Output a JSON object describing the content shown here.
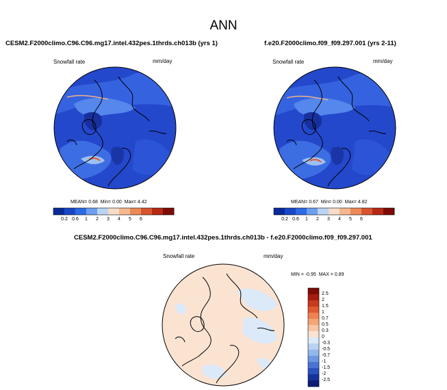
{
  "page": {
    "title": "ANN"
  },
  "panels": [
    {
      "case": "CESM2.F2000climo.C96.C96.mg17.intel.432pes.1thrds.ch013b (yrs 1)",
      "variable": "Snowfall rate",
      "units": "mm/day",
      "stats": {
        "mean_label": "MEAN=",
        "mean": "0.68",
        "min_label": "Min=",
        "min": "0.00",
        "max_label": "Max=",
        "max": "4.42"
      }
    },
    {
      "case": "f.e20.F2000climo.f09_f09.297.001 (yrs 2-11)",
      "variable": "Snowfall rate",
      "units": "mm/day",
      "stats": {
        "mean_label": "MEAN=",
        "mean": "0.67",
        "min_label": "Min=",
        "min": "0.00",
        "max_label": "Max=",
        "max": "4.82"
      }
    }
  ],
  "colorbar_horizontal": {
    "labels": [
      "0.2",
      "0.6",
      "1",
      "2",
      "3",
      "4",
      "5",
      "6"
    ],
    "colors": [
      "#0a2a9a",
      "#1a47c8",
      "#2d6ae6",
      "#6d9ef0",
      "#b9d4f5",
      "#f7dcc8",
      "#f5b88e",
      "#ec8a57",
      "#d8542e",
      "#b52a14",
      "#7e0b05"
    ]
  },
  "difference": {
    "title": "CESM2.F2000climo.C96.C96.mg17.intel.432pes.1thrds.ch013b - f.e20.F2000climo.f09_f09.297.001",
    "variable": "Snowfall rate",
    "units": "mm/day",
    "stats": {
      "min_label": "MIN =",
      "min": "-0.95",
      "max_label": "MAX =",
      "max": "0.89"
    }
  },
  "colorbar_vertical": {
    "labels": [
      "2.5",
      "2",
      "1.5",
      "1",
      "0.7",
      "0.5",
      "0.3",
      "0",
      "-0.3",
      "-0.5",
      "-0.7",
      "-1",
      "-1.5",
      "-2",
      "-2.5"
    ],
    "colors": [
      "#7e0b05",
      "#a51c0f",
      "#c83a1c",
      "#e05a2e",
      "#ef8050",
      "#f5a576",
      "#f8c6a4",
      "#fbe3d2",
      "#dce9f8",
      "#b9d2f3",
      "#93b7ec",
      "#6d97e2",
      "#4a74d4",
      "#2b52bd",
      "#16339a",
      "#0a1d78"
    ]
  },
  "colors": {
    "ocean_deep": "#1f3ec7",
    "snow_mid": "#3563e0",
    "snow_light": "#6d9ef0",
    "coastline": "#000000",
    "diff_positive": "#fbe3d2",
    "diff_negative": "#dce9f8"
  }
}
